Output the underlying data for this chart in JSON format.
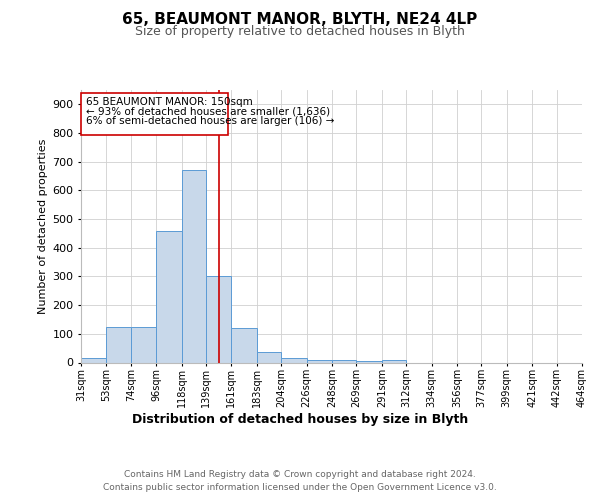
{
  "title1": "65, BEAUMONT MANOR, BLYTH, NE24 4LP",
  "title2": "Size of property relative to detached houses in Blyth",
  "xlabel": "Distribution of detached houses by size in Blyth",
  "ylabel": "Number of detached properties",
  "footnote1": "Contains HM Land Registry data © Crown copyright and database right 2024.",
  "footnote2": "Contains public sector information licensed under the Open Government Licence v3.0.",
  "annotation_line1": "65 BEAUMONT MANOR: 150sqm",
  "annotation_line2": "← 93% of detached houses are smaller (1,636)",
  "annotation_line3": "6% of semi-detached houses are larger (106) →",
  "bar_color": "#c8d8ea",
  "bar_edge_color": "#5b9bd5",
  "vline_color": "#cc0000",
  "vline_x": 150,
  "annotation_box_color": "#cc0000",
  "bins": [
    31,
    53,
    74,
    96,
    118,
    139,
    161,
    183,
    204,
    226,
    248,
    269,
    291,
    312,
    334,
    356,
    377,
    399,
    421,
    442,
    464
  ],
  "counts": [
    15,
    125,
    125,
    460,
    670,
    300,
    120,
    35,
    17,
    10,
    8,
    5,
    10,
    0,
    0,
    0,
    0,
    0,
    0,
    0
  ],
  "ylim": [
    0,
    950
  ],
  "yticks": [
    0,
    100,
    200,
    300,
    400,
    500,
    600,
    700,
    800,
    900
  ],
  "background_color": "#ffffff",
  "grid_color": "#d0d0d0"
}
